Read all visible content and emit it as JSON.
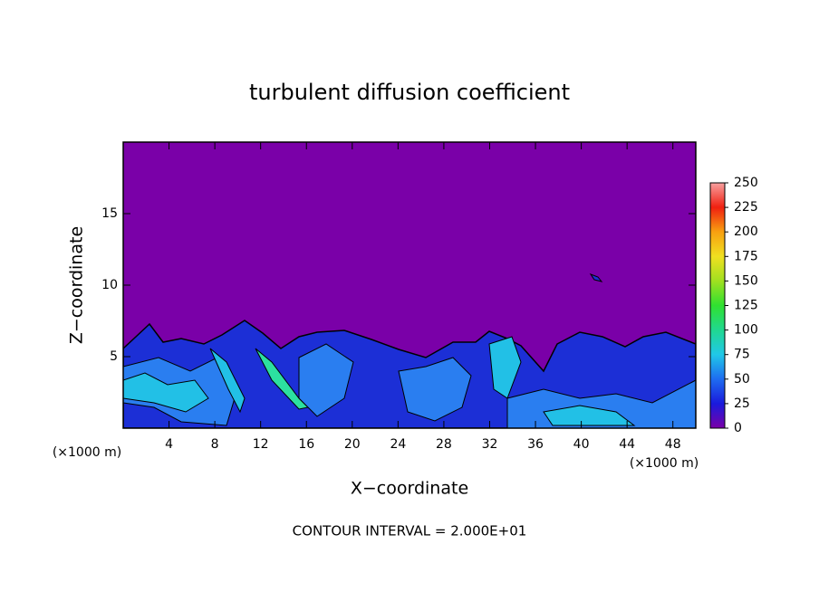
{
  "chart_data": {
    "type": "contour",
    "title": "turbulent diffusion coefficient",
    "xlabel": "X−coordinate",
    "ylabel": "Z−coordinate",
    "x_unit_labels": [
      "(×1000 m)",
      "(×1000 m)"
    ],
    "note": "CONTOUR INTERVAL = 2.000E+01",
    "xlim": [
      0,
      50
    ],
    "xticks": [
      4,
      8,
      12,
      16,
      20,
      24,
      28,
      32,
      36,
      40,
      44,
      48
    ],
    "ylim": [
      0,
      20
    ],
    "yticks": [
      5,
      10,
      15
    ],
    "colorbar": {
      "lim": [
        0,
        250
      ],
      "ticks": [
        0,
        25,
        50,
        75,
        100,
        125,
        150,
        175,
        200,
        225,
        250
      ],
      "colors": [
        "#7a00a8",
        "#1a1adc",
        "#1e6cf0",
        "#20c8e8",
        "#20d890",
        "#30e030",
        "#a0e020",
        "#f0e020",
        "#f8a010",
        "#f02010",
        "#f8a0a0"
      ]
    }
  }
}
